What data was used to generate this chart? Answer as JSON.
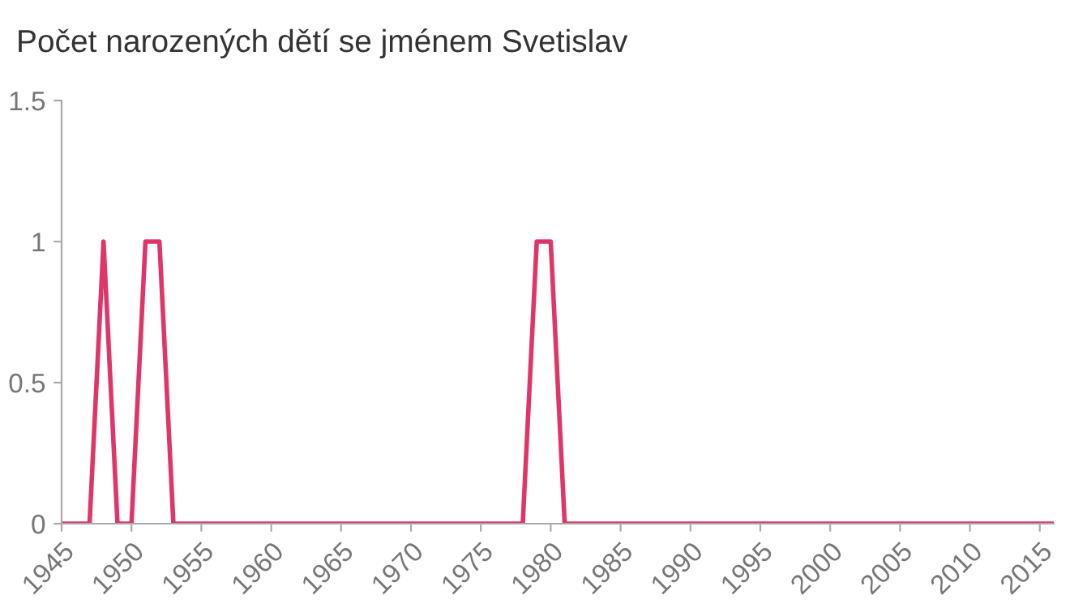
{
  "chart_data": {
    "type": "line",
    "title": "Počet narozených dětí se jménem Svetislav",
    "x": [
      1945,
      1946,
      1947,
      1948,
      1949,
      1950,
      1951,
      1952,
      1953,
      1954,
      1955,
      1960,
      1965,
      1970,
      1975,
      1977,
      1978,
      1979,
      1980,
      1981,
      1982,
      1985,
      1990,
      1995,
      2000,
      2005,
      2010,
      2015,
      2016
    ],
    "series": [
      {
        "color": "#e0356a",
        "values": [
          0,
          0,
          0,
          1,
          0,
          0,
          1,
          1,
          0,
          0,
          0,
          0,
          0,
          0,
          0,
          0,
          0,
          1,
          1,
          0,
          0,
          0,
          0,
          0,
          0,
          0,
          0,
          0,
          0
        ]
      }
    ],
    "xlim": [
      1945,
      2016
    ],
    "xticks": [
      1945,
      1950,
      1955,
      1960,
      1965,
      1970,
      1975,
      1980,
      1985,
      1990,
      1995,
      2000,
      2005,
      2010,
      2015
    ],
    "ylim": [
      0,
      1.5
    ],
    "yticks": [
      0,
      {
        "value": 0.5,
        "label": "0.5"
      },
      1,
      {
        "value": 1.5,
        "label": "1.5"
      }
    ],
    "grid": false,
    "legend": false
  }
}
